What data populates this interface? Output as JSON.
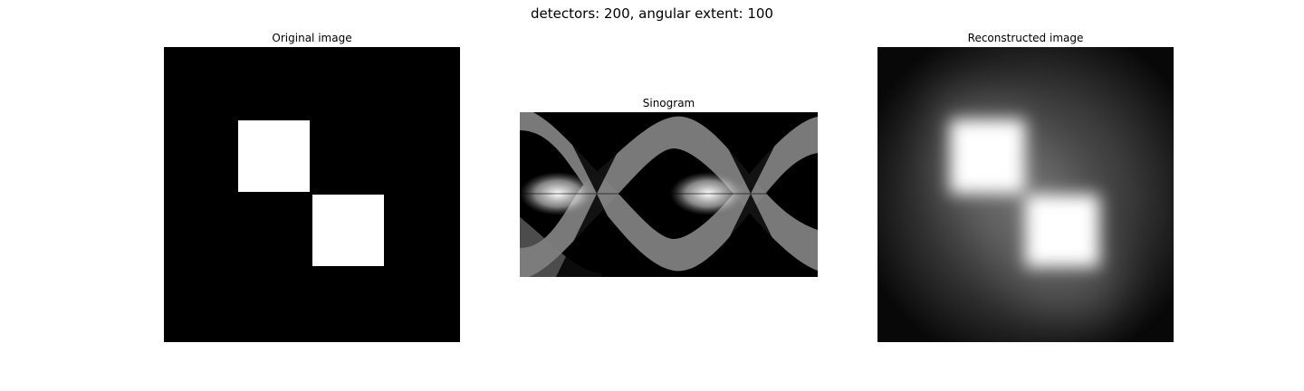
{
  "figure": {
    "suptitle": "detectors: 200, angular extent: 100"
  },
  "panels": {
    "original": {
      "title": "Original image"
    },
    "sinogram": {
      "title": "Sinogram"
    },
    "reconstructed": {
      "title": "Reconstructed image"
    }
  },
  "colors": {
    "background": "#000000",
    "foreground": "#ffffff",
    "mid_gray": "#808080"
  }
}
